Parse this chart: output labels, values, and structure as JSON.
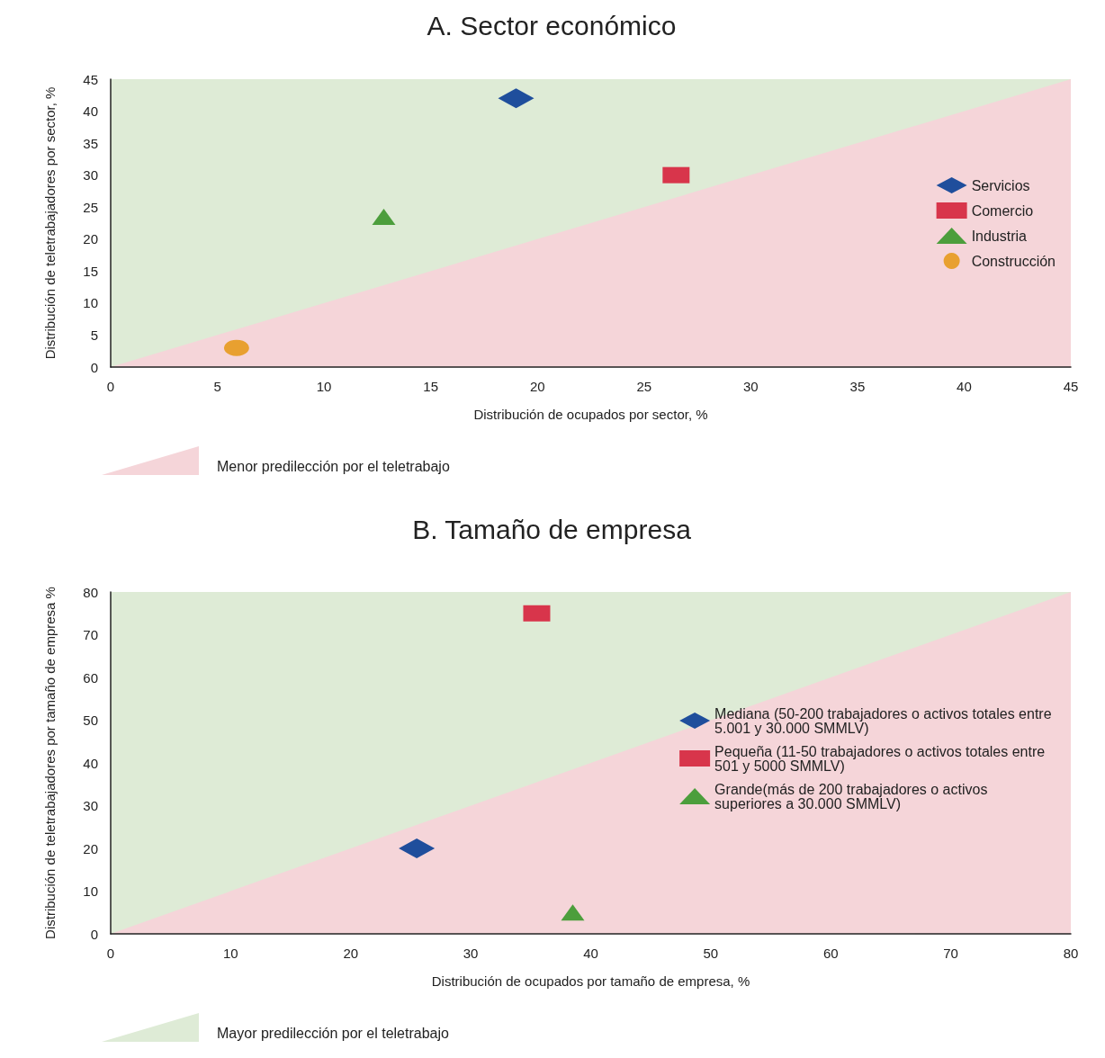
{
  "chart_data": [
    {
      "type": "scatter",
      "title": "A. Sector económico",
      "xlabel": "Distribución de ocupados por sector, %",
      "ylabel": "Distribución de teletrabajadores por sector, %",
      "xlim": [
        0,
        45
      ],
      "ylim": [
        0,
        45
      ],
      "xticks": [
        0,
        5,
        10,
        15,
        20,
        25,
        30,
        35,
        40,
        45
      ],
      "yticks": [
        0,
        5,
        10,
        15,
        20,
        25,
        30,
        35,
        40,
        45
      ],
      "grid": false,
      "legend": "right",
      "annotations": [
        "Menor predilección por el teletrabajo"
      ],
      "series": [
        {
          "type": "area",
          "color": "#f5d5d9",
          "x": [
            0,
            45
          ],
          "values": [
            0,
            45
          ]
        },
        {
          "name": "Servicios",
          "color": "#1f4e9c",
          "marker": "diamond",
          "x": [
            19
          ],
          "values": [
            42
          ]
        },
        {
          "name": "Comercio",
          "color": "#d8354b",
          "marker": "square",
          "x": [
            26.5
          ],
          "values": [
            30
          ]
        },
        {
          "name": "Industria",
          "color": "#4c9e3c",
          "marker": "triangle",
          "x": [
            12.8
          ],
          "values": [
            23.5
          ]
        },
        {
          "name": "Construcción",
          "color": "#e8a030",
          "marker": "circle",
          "x": [
            5.9
          ],
          "values": [
            3
          ]
        }
      ]
    },
    {
      "type": "scatter",
      "title": "B. Tamaño de empresa",
      "xlabel": "Distribución de ocupados por tamaño de empresa, %",
      "ylabel": "Distribución de teletrabajadores por tamaño de empresa %",
      "xlim": [
        0,
        80
      ],
      "ylim": [
        0,
        80
      ],
      "xticks": [
        0,
        10,
        20,
        30,
        40,
        50,
        60,
        70,
        80
      ],
      "yticks": [
        0,
        10,
        20,
        30,
        40,
        50,
        60,
        70,
        80
      ],
      "grid": false,
      "legend": "right",
      "annotations": [
        "Mayor predilección por el teletrabajo"
      ],
      "series": [
        {
          "type": "area",
          "color": "#f5d5d9",
          "x": [
            0,
            80
          ],
          "values": [
            0,
            80
          ]
        },
        {
          "name": "Mediana (50-200 trabajadores o activos totales entre 5.001 y 30.000 SMMLV)",
          "color": "#1f4e9c",
          "marker": "diamond",
          "x": [
            25.5
          ],
          "values": [
            20
          ]
        },
        {
          "name": "Pequeña (11-50 trabajadores o activos totales entre 501 y 5000 SMMLV)",
          "color": "#d8354b",
          "marker": "square",
          "x": [
            35.5
          ],
          "values": [
            75
          ]
        },
        {
          "name": "Grande(más de 200 trabajadores o activos superiores a 30.000 SMMLV)",
          "color": "#4c9e3c",
          "marker": "triangle",
          "x": [
            38.5
          ],
          "values": [
            5
          ]
        }
      ]
    }
  ]
}
